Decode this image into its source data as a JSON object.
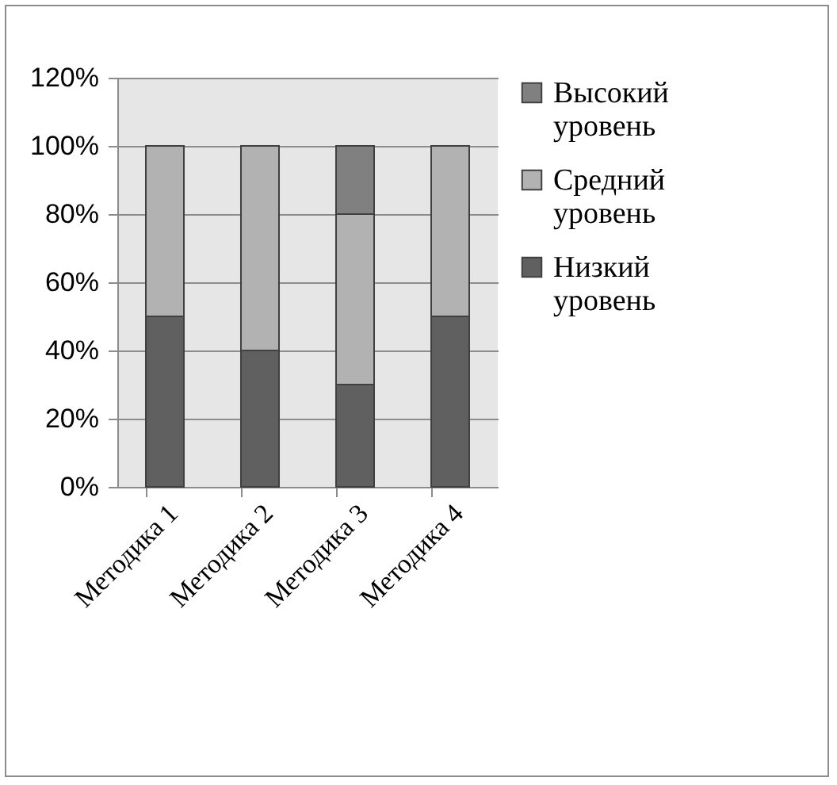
{
  "chart_data": {
    "type": "bar",
    "stacked": true,
    "categories": [
      "Методика 1",
      "Методика 2",
      "Методика 3",
      "Методика 4"
    ],
    "series": [
      {
        "name": "Низкий уровень",
        "color": "#606060",
        "values": [
          50,
          40,
          30,
          50
        ]
      },
      {
        "name": "Средний уровень",
        "color": "#b2b2b2",
        "values": [
          50,
          60,
          50,
          50
        ]
      },
      {
        "name": "Высокий уровень",
        "color": "#808080",
        "values": [
          null,
          null,
          20,
          null
        ]
      }
    ],
    "ylim": [
      0,
      120
    ],
    "yticks": [
      {
        "value": 0,
        "label": "0%"
      },
      {
        "value": 20,
        "label": "20%"
      },
      {
        "value": 40,
        "label": "40%"
      },
      {
        "value": 60,
        "label": "60%"
      },
      {
        "value": 80,
        "label": "80%"
      },
      {
        "value": 100,
        "label": "100%"
      },
      {
        "value": 120,
        "label": "120%"
      }
    ],
    "grid": "y",
    "legend": "right"
  }
}
